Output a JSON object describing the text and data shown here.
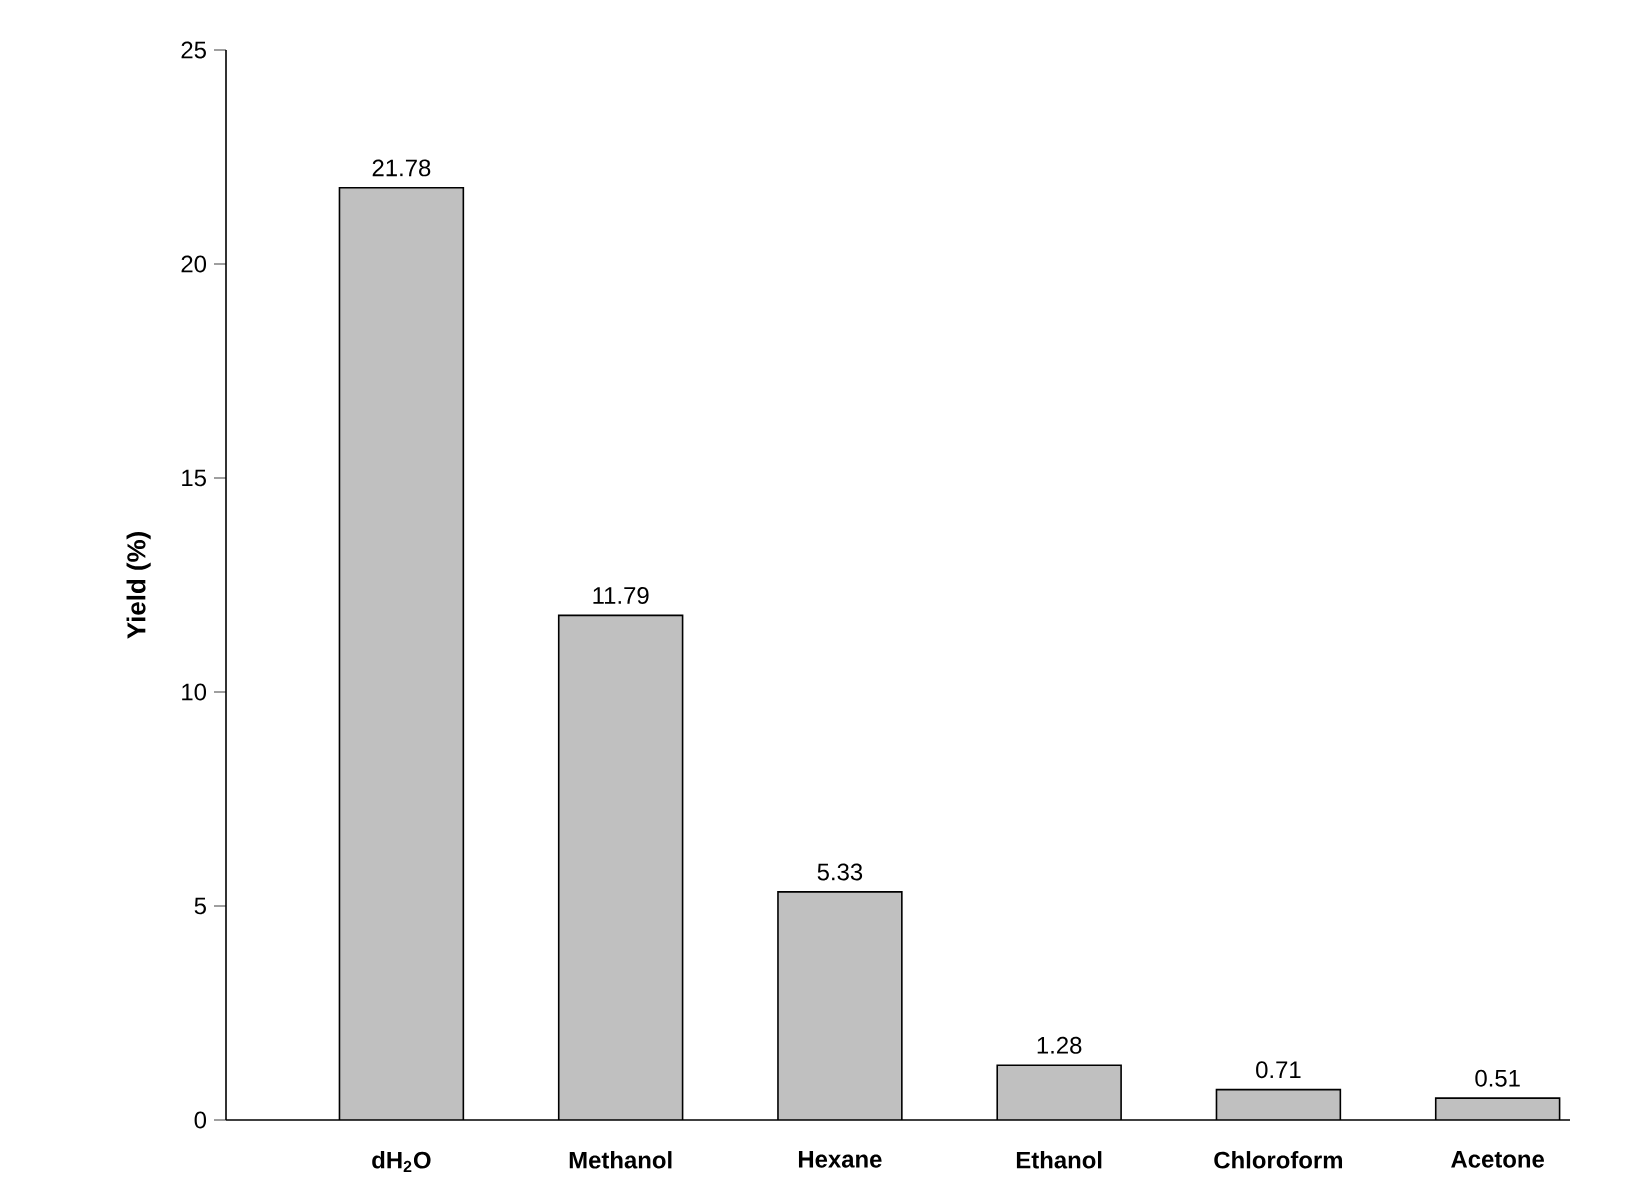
{
  "chart_data": {
    "type": "bar",
    "ylabel": "Yield (%)",
    "categories": [
      "dH$_{2}$O",
      "Methanol",
      "Hexane",
      "Ethanol",
      "Chloroform",
      "Acetone"
    ],
    "values": [
      21.78,
      11.79,
      5.33,
      1.28,
      0.71,
      0.51
    ],
    "color": "#c0c0c0",
    "ylim": [
      0,
      25
    ],
    "yticks": [
      0,
      5,
      10,
      15,
      20,
      25
    ],
    "data_labels": true
  }
}
